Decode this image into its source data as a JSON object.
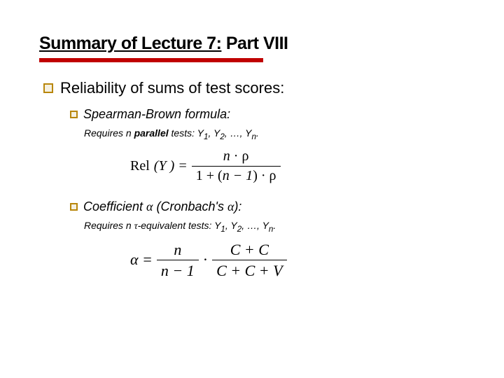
{
  "title_prefix": "Summary of Lecture 7:",
  "title_suffix": " Part VIII",
  "main_bullet": "Reliability of sums of test scores:",
  "sb": {
    "label": "Spearman-Brown formula:",
    "requires_prefix": "Requires n ",
    "requires_bold": "parallel",
    "requires_suffix": " tests: Y",
    "requires_sub1": "1",
    "requires_mid": ", Y",
    "requires_sub2": "2",
    "requires_ellipsis": ", …, Y",
    "requires_subn": "n",
    "requires_end": ".",
    "lhs_rel": "Rel",
    "lhs_y": "(Y ) =",
    "num_n": "n",
    "num_dot": " · ρ",
    "den_prefix": "1 + (",
    "den_nm1": "n − 1",
    "den_suffix": ") · ρ"
  },
  "ca": {
    "label_prefix": "Coefficient ",
    "label_alpha": "α",
    "label_mid": " (Cronbach's ",
    "label_alpha2": "α",
    "label_suffix": "):",
    "requires_prefix": "Requires n ",
    "requires_tau": "τ",
    "requires_mid": "-equivalent tests: Y",
    "requires_sub1": "1",
    "requires_c1": ", Y",
    "requires_sub2": "2",
    "requires_ellipsis": ", …, Y",
    "requires_subn": "n",
    "requires_end": ".",
    "lhs_alpha": "α =",
    "f1_num": "n",
    "f1_den": "n − 1",
    "dot": " · ",
    "f2_num": "C + C",
    "f2_den": "C + C + V"
  },
  "colors": {
    "rule": "#c00000",
    "bullet_border": "#b8860b",
    "text": "#000000",
    "bg": "#ffffff"
  }
}
